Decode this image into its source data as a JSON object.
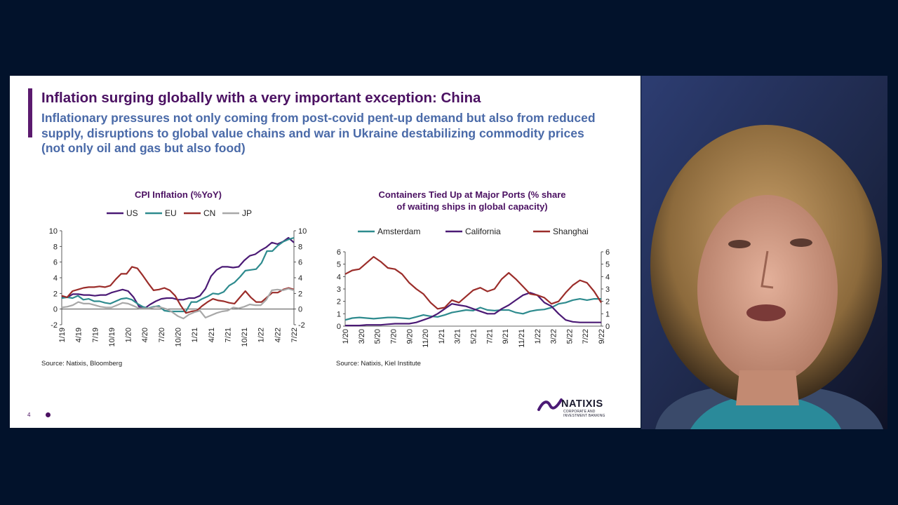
{
  "slide": {
    "title": "Inflation surging globally with a very important exception: China",
    "subtitle": "Inflationary pressures not only coming from post-covid pent-up demand but also from reduced supply, disruptions to global value chains and war in Ukraine destabilizing commodity prices (not only oil and gas but also food)",
    "page_number": "4",
    "logo": {
      "name": "NATIXIS",
      "tagline_1": "CORPORATE AND",
      "tagline_2": "INVESTMENT BANKING"
    }
  },
  "chart_data": [
    {
      "type": "line",
      "title": "CPI Inflation (%YoY)",
      "source": "Source: Natixis, Bloomberg",
      "x_labels": [
        "1/19",
        "4/19",
        "7/19",
        "10/19",
        "1/20",
        "4/20",
        "7/20",
        "10/20",
        "1/21",
        "4/21",
        "7/21",
        "10/21",
        "1/22",
        "4/22",
        "7/22"
      ],
      "ylim": [
        -2,
        10
      ],
      "y_ticks": [
        "-2",
        "0",
        "2",
        "4",
        "6",
        "8",
        "10"
      ],
      "y_ticks_right": [
        "-2",
        "0",
        "2",
        "4",
        "6",
        "8",
        "10"
      ],
      "legend_position": "top",
      "series": [
        {
          "name": "US",
          "color": "#4b1a75",
          "values": [
            1.6,
            1.5,
            1.9,
            1.9,
            1.8,
            1.8,
            1.7,
            1.8,
            1.8,
            2.1,
            2.3,
            2.5,
            2.3,
            1.5,
            0.3,
            0.1,
            0.6,
            1.0,
            1.3,
            1.4,
            1.4,
            1.2,
            1.2,
            1.4,
            1.4,
            1.7,
            2.6,
            4.2,
            5.0,
            5.4,
            5.4,
            5.3,
            5.4,
            6.2,
            6.8,
            7.0,
            7.5,
            7.9,
            8.5,
            8.3,
            8.6,
            9.1,
            8.5
          ]
        },
        {
          "name": "EU",
          "color": "#2e8b8e",
          "values": [
            1.4,
            1.5,
            1.4,
            1.7,
            1.2,
            1.3,
            1.0,
            1.0,
            0.8,
            0.7,
            1.0,
            1.3,
            1.4,
            1.2,
            0.7,
            0.3,
            0.1,
            0.3,
            0.4,
            -0.2,
            -0.3,
            -0.3,
            -0.3,
            -0.3,
            0.9,
            0.9,
            1.3,
            1.6,
            2.0,
            1.9,
            2.2,
            3.0,
            3.4,
            4.1,
            4.9,
            5.0,
            5.1,
            5.9,
            7.4,
            7.4,
            8.1,
            8.6,
            8.9,
            9.1
          ]
        },
        {
          "name": "CN",
          "color": "#9b2d2a",
          "values": [
            1.7,
            1.5,
            2.3,
            2.5,
            2.7,
            2.8,
            2.8,
            2.9,
            2.8,
            3.0,
            3.8,
            4.5,
            4.5,
            5.4,
            5.2,
            4.3,
            3.3,
            2.4,
            2.5,
            2.7,
            2.4,
            1.7,
            0.5,
            -0.5,
            -0.3,
            -0.2,
            0.4,
            0.9,
            1.3,
            1.1,
            1.0,
            0.8,
            0.7,
            1.5,
            2.3,
            1.5,
            0.9,
            0.9,
            1.5,
            2.1,
            2.1,
            2.5,
            2.7,
            2.5
          ]
        },
        {
          "name": "JP",
          "color": "#a8a8a8",
          "values": [
            0.2,
            0.3,
            0.5,
            0.9,
            0.7,
            0.7,
            0.5,
            0.3,
            0.2,
            0.2,
            0.5,
            0.8,
            0.7,
            0.4,
            0.1,
            0.1,
            0.1,
            0.3,
            0.2,
            0.0,
            -0.4,
            -0.9,
            -1.2,
            -0.7,
            -0.4,
            -0.2,
            -1.1,
            -0.8,
            -0.5,
            -0.3,
            -0.2,
            0.2,
            0.1,
            0.3,
            0.6,
            0.5,
            0.5,
            1.2,
            2.4,
            2.5,
            2.4,
            2.6,
            2.4
          ]
        }
      ]
    },
    {
      "type": "line",
      "title": "Containers Tied Up at Major Ports (% share of waiting ships in global capacity)",
      "title_line_1": "Containers Tied Up at Major Ports (% share",
      "title_line_2": "of waiting ships in global capacity)",
      "source": "Source: Natixis, Kiel Institute",
      "x_labels": [
        "1/20",
        "3/20",
        "5/20",
        "7/20",
        "9/20",
        "11/20",
        "1/21",
        "3/21",
        "5/21",
        "7/21",
        "9/21",
        "11/21",
        "1/22",
        "3/22",
        "5/22",
        "7/22",
        "9/22"
      ],
      "ylim": [
        0,
        6
      ],
      "y_ticks": [
        "0",
        "1",
        "2",
        "3",
        "4",
        "5",
        "6"
      ],
      "y_ticks_right": [
        "0",
        "1",
        "2",
        "3",
        "4",
        "5",
        "6"
      ],
      "legend_position": "top",
      "series": [
        {
          "name": "Amsterdam",
          "color": "#2e8b8e",
          "values": [
            0.5,
            0.65,
            0.7,
            0.65,
            0.6,
            0.65,
            0.7,
            0.7,
            0.65,
            0.6,
            0.75,
            0.9,
            0.8,
            0.75,
            0.9,
            1.1,
            1.2,
            1.3,
            1.25,
            1.5,
            1.3,
            1.25,
            1.3,
            1.3,
            1.1,
            1.0,
            1.2,
            1.3,
            1.35,
            1.5,
            1.8,
            1.9,
            2.1,
            2.2,
            2.1,
            2.2,
            2.2
          ]
        },
        {
          "name": "California",
          "color": "#4b1a75",
          "values": [
            0.05,
            0.05,
            0.05,
            0.1,
            0.1,
            0.1,
            0.15,
            0.2,
            0.2,
            0.2,
            0.3,
            0.5,
            0.7,
            1.0,
            1.4,
            1.8,
            1.7,
            1.6,
            1.4,
            1.2,
            1.0,
            1.0,
            1.4,
            1.7,
            2.1,
            2.5,
            2.7,
            2.5,
            1.9,
            1.6,
            1.0,
            0.5,
            0.35,
            0.3,
            0.3,
            0.3,
            0.3
          ]
        },
        {
          "name": "Shanghai",
          "color": "#9b2d2a",
          "values": [
            4.2,
            4.5,
            4.6,
            5.1,
            5.6,
            5.2,
            4.7,
            4.6,
            4.2,
            3.5,
            3.0,
            2.6,
            1.9,
            1.4,
            1.5,
            2.1,
            1.9,
            2.4,
            2.9,
            3.1,
            2.8,
            3.0,
            3.8,
            4.3,
            3.8,
            3.2,
            2.6,
            2.5,
            2.3,
            1.8,
            2.0,
            2.7,
            3.3,
            3.7,
            3.5,
            2.8,
            1.9
          ]
        }
      ]
    }
  ]
}
